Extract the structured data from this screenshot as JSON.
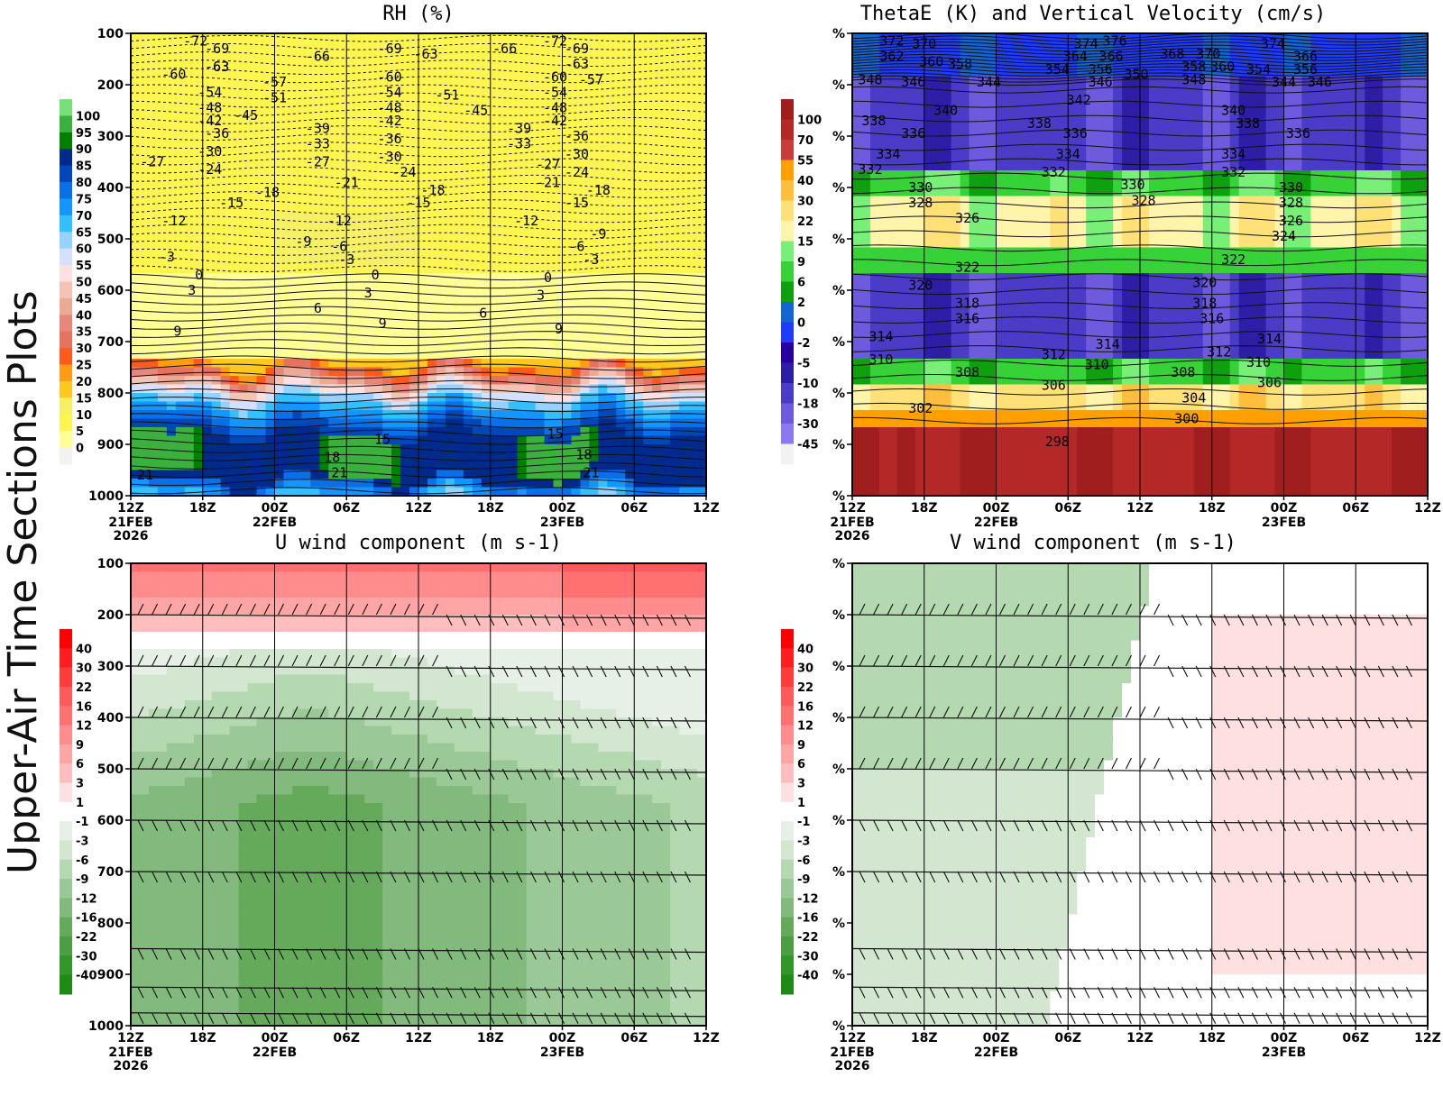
{
  "page": {
    "side_title": "Upper-Air Time Sections Plots"
  },
  "time_axis": {
    "ticks": [
      "12Z",
      "18Z",
      "00Z",
      "06Z",
      "12Z",
      "18Z",
      "00Z",
      "06Z",
      "12Z"
    ],
    "dates": [
      {
        "index": 0,
        "lines": [
          "21FEB",
          "2026"
        ]
      },
      {
        "index": 2,
        "lines": [
          "22FEB"
        ]
      },
      {
        "index": 6,
        "lines": [
          "23FEB"
        ]
      }
    ]
  },
  "chart_data": [
    {
      "id": "rh",
      "type": "heatmap",
      "title": "RH (%)",
      "xlabel": "",
      "ylabel": "",
      "yaxis": {
        "ticks": [
          "100",
          "200",
          "300",
          "400",
          "500",
          "600",
          "700",
          "800",
          "900",
          "1000"
        ],
        "range": [
          100,
          1000
        ]
      },
      "colorbar": {
        "labels": [
          "100",
          "95",
          "90",
          "85",
          "80",
          "75",
          "70",
          "65",
          "60",
          "55",
          "50",
          "45",
          "40",
          "35",
          "30",
          "25",
          "20",
          "15",
          "10",
          "5",
          "0"
        ],
        "colors": [
          "#78e078",
          "#3cb03c",
          "#008000",
          "#002a8c",
          "#0048b8",
          "#0a70e8",
          "#1496ff",
          "#32c0ff",
          "#96d2ff",
          "#d4e0ff",
          "#ffe0e0",
          "#f5c3b4",
          "#eaaa96",
          "#e6877a",
          "#e6735f",
          "#ff5a1e",
          "#ff9b14",
          "#ffc81e",
          "#f5f064",
          "#fff550",
          "#ffff96",
          "#f2f2f2"
        ]
      },
      "contour_labels": [
        {
          "t": 0.9,
          "p": 115,
          "v": "-72"
        },
        {
          "t": 1.2,
          "p": 130,
          "v": "-69"
        },
        {
          "t": 1.2,
          "p": 165,
          "v": "-63"
        },
        {
          "t": 0.6,
          "p": 180,
          "v": "-60"
        },
        {
          "t": 1.1,
          "p": 215,
          "v": "-54"
        },
        {
          "t": 1.1,
          "p": 245,
          "v": "-48"
        },
        {
          "t": 1.1,
          "p": 270,
          "v": "-42"
        },
        {
          "t": 1.6,
          "p": 260,
          "v": "-45"
        },
        {
          "t": 1.2,
          "p": 295,
          "v": "-36"
        },
        {
          "t": 1.1,
          "p": 330,
          "v": "-30"
        },
        {
          "t": 0.3,
          "p": 350,
          "v": "-27"
        },
        {
          "t": 1.1,
          "p": 365,
          "v": "-24"
        },
        {
          "t": 1.4,
          "p": 430,
          "v": "-15"
        },
        {
          "t": 0.6,
          "p": 465,
          "v": "-12"
        },
        {
          "t": 0.5,
          "p": 535,
          "v": "-3"
        },
        {
          "t": 1.2,
          "p": 165,
          "v": "-63"
        },
        {
          "t": 2.0,
          "p": 195,
          "v": "-57"
        },
        {
          "t": 2.0,
          "p": 225,
          "v": "-51"
        },
        {
          "t": 2.6,
          "p": 145,
          "v": "-66"
        },
        {
          "t": 2.6,
          "p": 285,
          "v": "-39"
        },
        {
          "t": 2.6,
          "p": 315,
          "v": "-33"
        },
        {
          "t": 2.6,
          "p": 350,
          "v": "-27"
        },
        {
          "t": 3.0,
          "p": 390,
          "v": "-21"
        },
        {
          "t": 1.9,
          "p": 410,
          "v": "-18"
        },
        {
          "t": 2.4,
          "p": 505,
          "v": "-9"
        },
        {
          "t": 2.9,
          "p": 465,
          "v": "-12"
        },
        {
          "t": 2.9,
          "p": 515,
          "v": "-6"
        },
        {
          "t": 3.0,
          "p": 540,
          "v": "-3"
        },
        {
          "t": 3.6,
          "p": 130,
          "v": "-69"
        },
        {
          "t": 3.6,
          "p": 185,
          "v": "-60"
        },
        {
          "t": 3.6,
          "p": 215,
          "v": "-54"
        },
        {
          "t": 3.6,
          "p": 245,
          "v": "-48"
        },
        {
          "t": 3.6,
          "p": 270,
          "v": "-42"
        },
        {
          "t": 3.6,
          "p": 305,
          "v": "-36"
        },
        {
          "t": 3.6,
          "p": 340,
          "v": "-30"
        },
        {
          "t": 3.8,
          "p": 370,
          "v": "-24"
        },
        {
          "t": 4.0,
          "p": 430,
          "v": "-15"
        },
        {
          "t": 4.2,
          "p": 405,
          "v": "-18"
        },
        {
          "t": 4.1,
          "p": 140,
          "v": "-63"
        },
        {
          "t": 4.4,
          "p": 220,
          "v": "-51"
        },
        {
          "t": 4.8,
          "p": 250,
          "v": "-45"
        },
        {
          "t": 5.2,
          "p": 130,
          "v": "-66"
        },
        {
          "t": 5.4,
          "p": 285,
          "v": "-39"
        },
        {
          "t": 5.4,
          "p": 315,
          "v": "-33"
        },
        {
          "t": 5.8,
          "p": 355,
          "v": "-27"
        },
        {
          "t": 5.8,
          "p": 390,
          "v": "-21"
        },
        {
          "t": 5.5,
          "p": 465,
          "v": "-12"
        },
        {
          "t": 5.9,
          "p": 115,
          "v": "-72"
        },
        {
          "t": 5.9,
          "p": 185,
          "v": "-60"
        },
        {
          "t": 5.9,
          "p": 215,
          "v": "-54"
        },
        {
          "t": 5.9,
          "p": 245,
          "v": "-48"
        },
        {
          "t": 5.9,
          "p": 270,
          "v": "-42"
        },
        {
          "t": 6.2,
          "p": 130,
          "v": "-69"
        },
        {
          "t": 6.2,
          "p": 160,
          "v": "-63"
        },
        {
          "t": 6.4,
          "p": 190,
          "v": "-57"
        },
        {
          "t": 6.2,
          "p": 300,
          "v": "-36"
        },
        {
          "t": 6.2,
          "p": 335,
          "v": "-30"
        },
        {
          "t": 6.2,
          "p": 370,
          "v": "-24"
        },
        {
          "t": 6.5,
          "p": 405,
          "v": "-18"
        },
        {
          "t": 6.2,
          "p": 430,
          "v": "-15"
        },
        {
          "t": 6.5,
          "p": 490,
          "v": "-9"
        },
        {
          "t": 6.2,
          "p": 515,
          "v": "-6"
        },
        {
          "t": 6.4,
          "p": 540,
          "v": "-3"
        },
        {
          "t": 0.95,
          "p": 570,
          "v": "0"
        },
        {
          "t": 3.4,
          "p": 570,
          "v": "0"
        },
        {
          "t": 5.8,
          "p": 575,
          "v": "0"
        },
        {
          "t": 0.85,
          "p": 600,
          "v": "3"
        },
        {
          "t": 3.3,
          "p": 605,
          "v": "3"
        },
        {
          "t": 5.7,
          "p": 610,
          "v": "3"
        },
        {
          "t": 2.6,
          "p": 635,
          "v": "6"
        },
        {
          "t": 4.9,
          "p": 645,
          "v": "6"
        },
        {
          "t": 0.65,
          "p": 680,
          "v": "9"
        },
        {
          "t": 3.5,
          "p": 665,
          "v": "9"
        },
        {
          "t": 5.95,
          "p": 675,
          "v": "9"
        },
        {
          "t": 3.5,
          "p": 890,
          "v": "15"
        },
        {
          "t": 5.9,
          "p": 880,
          "v": "15"
        },
        {
          "t": 2.8,
          "p": 925,
          "v": "18"
        },
        {
          "t": 6.3,
          "p": 920,
          "v": "18"
        },
        {
          "t": 0.2,
          "p": 960,
          "v": "21"
        },
        {
          "t": 2.9,
          "p": 955,
          "v": "21"
        },
        {
          "t": 6.4,
          "p": 955,
          "v": "21"
        }
      ]
    },
    {
      "id": "thetae",
      "type": "heatmap",
      "title": "ThetaE (K) and Vertical Velocity (cm/s)",
      "xlabel": "",
      "ylabel": "",
      "yaxis": {
        "ticks": [
          "%",
          "%",
          "%",
          "%",
          "%",
          "%",
          "%",
          "%",
          "%",
          "%"
        ],
        "range": [
          100,
          1000
        ]
      },
      "colorbar": {
        "labels": [
          "100",
          "70",
          "55",
          "40",
          "30",
          "22",
          "15",
          "9",
          "6",
          "2",
          "0",
          "-2",
          "-5",
          "-10",
          "-18",
          "-30",
          "-45"
        ],
        "colors": [
          "#a01e1e",
          "#b42828",
          "#c83c3c",
          "#ff9f00",
          "#ffbe3c",
          "#ffe178",
          "#fff5aa",
          "#78f078",
          "#37d237",
          "#0fa00f",
          "#1464d2",
          "#1e3cff",
          "#2800a0",
          "#2d1ea5",
          "#4b3cc8",
          "#6e5adc",
          "#8c78f0",
          "#f2f2f2"
        ]
      },
      "contour_labels": [
        {
          "t": 0.55,
          "p": 115,
          "v": "372"
        },
        {
          "t": 0.55,
          "p": 145,
          "v": "362"
        },
        {
          "t": 1.0,
          "p": 120,
          "v": "370"
        },
        {
          "t": 1.1,
          "p": 155,
          "v": "360"
        },
        {
          "t": 1.5,
          "p": 160,
          "v": "358"
        },
        {
          "t": 0.25,
          "p": 190,
          "v": "348"
        },
        {
          "t": 0.85,
          "p": 195,
          "v": "346"
        },
        {
          "t": 1.9,
          "p": 195,
          "v": "344"
        },
        {
          "t": 3.25,
          "p": 120,
          "v": "374"
        },
        {
          "t": 3.65,
          "p": 115,
          "v": "376"
        },
        {
          "t": 3.1,
          "p": 145,
          "v": "364"
        },
        {
          "t": 3.6,
          "p": 145,
          "v": "366"
        },
        {
          "t": 2.85,
          "p": 170,
          "v": "354"
        },
        {
          "t": 3.45,
          "p": 170,
          "v": "356"
        },
        {
          "t": 3.45,
          "p": 195,
          "v": "346"
        },
        {
          "t": 3.95,
          "p": 180,
          "v": "350"
        },
        {
          "t": 4.45,
          "p": 140,
          "v": "368"
        },
        {
          "t": 4.95,
          "p": 140,
          "v": "370"
        },
        {
          "t": 4.75,
          "p": 165,
          "v": "358"
        },
        {
          "t": 5.15,
          "p": 165,
          "v": "360"
        },
        {
          "t": 4.75,
          "p": 190,
          "v": "348"
        },
        {
          "t": 5.85,
          "p": 120,
          "v": "374"
        },
        {
          "t": 5.65,
          "p": 170,
          "v": "354"
        },
        {
          "t": 6.0,
          "p": 195,
          "v": "344"
        },
        {
          "t": 6.3,
          "p": 145,
          "v": "366"
        },
        {
          "t": 6.3,
          "p": 170,
          "v": "356"
        },
        {
          "t": 6.5,
          "p": 195,
          "v": "346"
        },
        {
          "t": 3.15,
          "p": 230,
          "v": "342"
        },
        {
          "t": 1.3,
          "p": 250,
          "v": "340"
        },
        {
          "t": 5.3,
          "p": 250,
          "v": "340"
        },
        {
          "t": 0.3,
          "p": 270,
          "v": "338"
        },
        {
          "t": 2.6,
          "p": 275,
          "v": "338"
        },
        {
          "t": 5.5,
          "p": 275,
          "v": "338"
        },
        {
          "t": 0.85,
          "p": 295,
          "v": "336"
        },
        {
          "t": 3.1,
          "p": 295,
          "v": "336"
        },
        {
          "t": 6.2,
          "p": 295,
          "v": "336"
        },
        {
          "t": 0.5,
          "p": 335,
          "v": "334"
        },
        {
          "t": 3.0,
          "p": 335,
          "v": "334"
        },
        {
          "t": 5.3,
          "p": 335,
          "v": "334"
        },
        {
          "t": 0.25,
          "p": 365,
          "v": "332"
        },
        {
          "t": 2.8,
          "p": 370,
          "v": "332"
        },
        {
          "t": 5.3,
          "p": 370,
          "v": "332"
        },
        {
          "t": 0.95,
          "p": 400,
          "v": "330"
        },
        {
          "t": 3.9,
          "p": 395,
          "v": "330"
        },
        {
          "t": 6.1,
          "p": 400,
          "v": "330"
        },
        {
          "t": 0.95,
          "p": 430,
          "v": "328"
        },
        {
          "t": 4.05,
          "p": 425,
          "v": "328"
        },
        {
          "t": 6.1,
          "p": 430,
          "v": "328"
        },
        {
          "t": 1.6,
          "p": 460,
          "v": "326"
        },
        {
          "t": 6.1,
          "p": 465,
          "v": "326"
        },
        {
          "t": 6.0,
          "p": 495,
          "v": "324"
        },
        {
          "t": 1.6,
          "p": 555,
          "v": "322"
        },
        {
          "t": 5.3,
          "p": 540,
          "v": "322"
        },
        {
          "t": 0.95,
          "p": 590,
          "v": "320"
        },
        {
          "t": 4.9,
          "p": 585,
          "v": "320"
        },
        {
          "t": 1.6,
          "p": 625,
          "v": "318"
        },
        {
          "t": 4.9,
          "p": 625,
          "v": "318"
        },
        {
          "t": 1.6,
          "p": 655,
          "v": "316"
        },
        {
          "t": 5.0,
          "p": 655,
          "v": "316"
        },
        {
          "t": 0.4,
          "p": 690,
          "v": "314"
        },
        {
          "t": 3.55,
          "p": 705,
          "v": "314"
        },
        {
          "t": 5.8,
          "p": 695,
          "v": "314"
        },
        {
          "t": 2.8,
          "p": 725,
          "v": "312"
        },
        {
          "t": 5.1,
          "p": 720,
          "v": "312"
        },
        {
          "t": 0.4,
          "p": 735,
          "v": "310"
        },
        {
          "t": 3.4,
          "p": 745,
          "v": "310"
        },
        {
          "t": 5.65,
          "p": 740,
          "v": "310"
        },
        {
          "t": 1.6,
          "p": 760,
          "v": "308"
        },
        {
          "t": 4.6,
          "p": 760,
          "v": "308"
        },
        {
          "t": 2.8,
          "p": 785,
          "v": "306"
        },
        {
          "t": 5.8,
          "p": 780,
          "v": "306"
        },
        {
          "t": 4.75,
          "p": 810,
          "v": "304"
        },
        {
          "t": 0.95,
          "p": 830,
          "v": "302"
        },
        {
          "t": 4.65,
          "p": 850,
          "v": "300"
        },
        {
          "t": 2.85,
          "p": 895,
          "v": "298"
        }
      ]
    },
    {
      "id": "uwind",
      "type": "heatmap",
      "title": "U wind component (m s-1)",
      "xlabel": "",
      "ylabel": "",
      "yaxis": {
        "ticks": [
          "100",
          "200",
          "300",
          "400",
          "500",
          "600",
          "700",
          "800",
          "900",
          "1000"
        ],
        "range": [
          100,
          1000
        ]
      },
      "colorbar": {
        "labels": [
          "40",
          "30",
          "22",
          "16",
          "12",
          "9",
          "6",
          "3",
          "1",
          "-1",
          "-3",
          "-6",
          "-9",
          "-12",
          "-16",
          "-22",
          "-30",
          "-40"
        ],
        "colors": [
          "#ff0000",
          "#ff1e1e",
          "#ff3c3c",
          "#ff5a5a",
          "#ff7070",
          "#ff8c8c",
          "#ffa5a5",
          "#ffbebe",
          "#ffe0e0",
          "#ffffff",
          "#e6f0e6",
          "#d2e6d0",
          "#b4d8b0",
          "#9ac896",
          "#82b97c",
          "#64aa5a",
          "#4b9e41",
          "#329628",
          "#1e8c14"
        ]
      }
    },
    {
      "id": "vwind",
      "type": "heatmap",
      "title": "V wind component (m s-1)",
      "xlabel": "",
      "ylabel": "",
      "yaxis": {
        "ticks": [
          "%",
          "%",
          "%",
          "%",
          "%",
          "%",
          "%",
          "%",
          "%",
          "%"
        ],
        "range": [
          100,
          1000
        ]
      },
      "colorbar": {
        "labels": [
          "40",
          "30",
          "22",
          "16",
          "12",
          "9",
          "6",
          "3",
          "1",
          "-1",
          "-3",
          "-6",
          "-9",
          "-12",
          "-16",
          "-22",
          "-30",
          "-40"
        ],
        "colors": [
          "#ff0000",
          "#ff1e1e",
          "#ff3c3c",
          "#ff5a5a",
          "#ff7070",
          "#ff8c8c",
          "#ffa5a5",
          "#ffbebe",
          "#ffe0e0",
          "#ffffff",
          "#e6f0e6",
          "#d2e6d0",
          "#b4d8b0",
          "#9ac896",
          "#82b97c",
          "#64aa5a",
          "#4b9e41",
          "#329628",
          "#1e8c14"
        ]
      }
    }
  ]
}
